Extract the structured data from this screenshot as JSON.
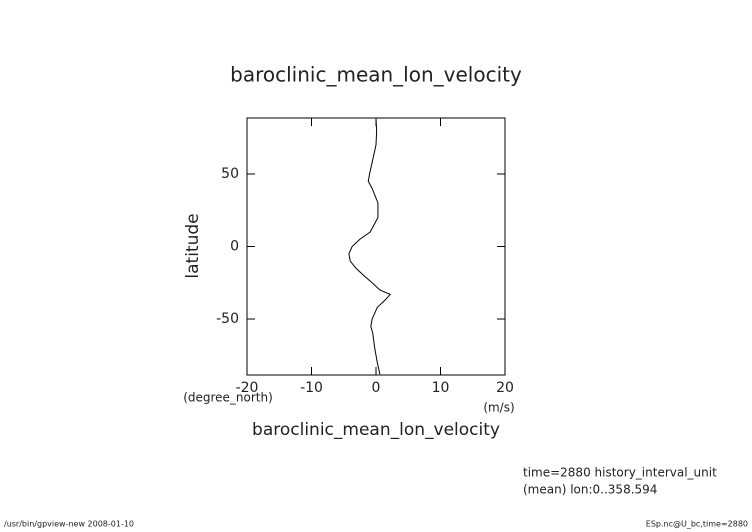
{
  "chart_data": {
    "type": "line",
    "title": "baroclinic_mean_lon_velocity",
    "x_label": "baroclinic_mean_lon_velocity",
    "x_units": "(m/s)",
    "y_label": "latitude",
    "y_units": "(degree_north)",
    "latitude": [
      88,
      80,
      70,
      60,
      50,
      45,
      40,
      30,
      20,
      10,
      5,
      0,
      -5,
      -10,
      -15,
      -20,
      -25,
      -30,
      -33,
      -37,
      -42,
      -50,
      -55,
      -60,
      -70,
      -80,
      -88
    ],
    "values": [
      0,
      0.1,
      0,
      -0.5,
      -1,
      -1.2,
      -0.6,
      0.3,
      0.3,
      -0.9,
      -2.5,
      -3.7,
      -4.2,
      -4,
      -3.1,
      -1.9,
      -0.6,
      0.6,
      2.2,
      1.4,
      0.2,
      -0.6,
      -0.8,
      -0.5,
      -0.2,
      0.2,
      0.6
    ],
    "color": "#000000",
    "xlim": [
      -20,
      20
    ],
    "xticks": [
      -20,
      -10,
      0,
      10,
      20
    ],
    "ylim": [
      -88.6,
      88.6
    ],
    "yticks": [
      -50,
      0,
      50
    ],
    "annotations": [
      "time=2880 history_interval_unit",
      "(mean) lon:0..358.594"
    ],
    "footer_left": "/usr/bin/gpview-new  2008-01-10",
    "footer_right": "ESp.nc@U_bc,time=2880"
  }
}
